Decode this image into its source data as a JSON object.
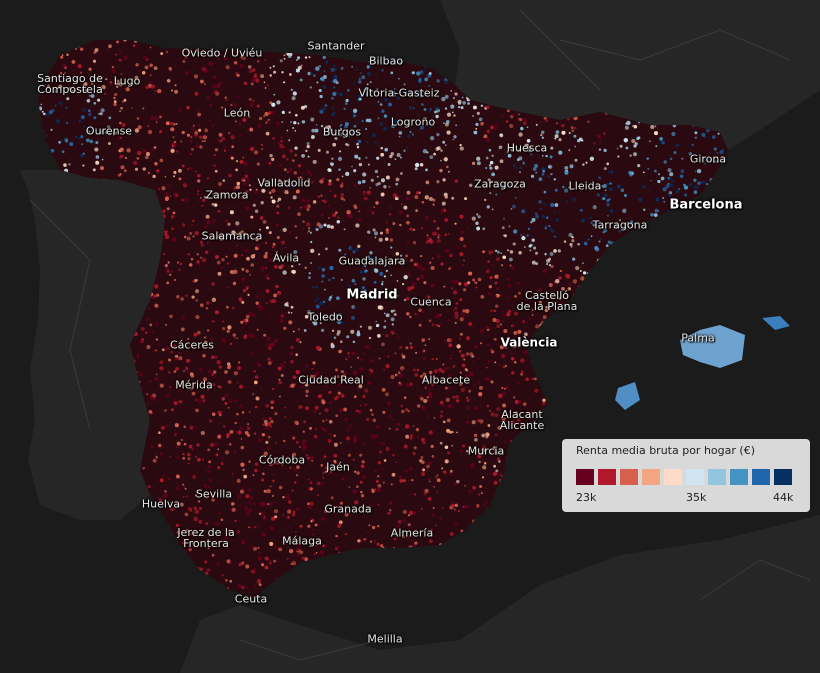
{
  "legend": {
    "title": "Renta media bruta por hogar (€)",
    "colors": [
      "#67001f",
      "#b2182b",
      "#d6604d",
      "#f4a582",
      "#fddbc7",
      "#d1e5f0",
      "#92c5de",
      "#4393c3",
      "#2166ac",
      "#053061"
    ],
    "ticks": [
      "23k",
      "35k",
      "44k"
    ]
  },
  "cities": [
    {
      "name": "Santander"
    },
    {
      "name": "Bilbao"
    },
    {
      "name": "Oviedo / Uviéu"
    },
    {
      "name": "Santiago de\nCompostela"
    },
    {
      "name": "Lugo"
    },
    {
      "name": "Vitoria-Gasteiz"
    },
    {
      "name": "León"
    },
    {
      "name": "Logroño"
    },
    {
      "name": "Ourense"
    },
    {
      "name": "Burgos"
    },
    {
      "name": "Huesca"
    },
    {
      "name": "Girona"
    },
    {
      "name": "Valladolid"
    },
    {
      "name": "Zaragoza"
    },
    {
      "name": "Lleida"
    },
    {
      "name": "Zamora"
    },
    {
      "name": "Barcelona"
    },
    {
      "name": "Tarragona"
    },
    {
      "name": "Salamanca"
    },
    {
      "name": "Ávila"
    },
    {
      "name": "Guadalajara"
    },
    {
      "name": "Madrid"
    },
    {
      "name": "Cuenca"
    },
    {
      "name": "Castelló\nde la Plana"
    },
    {
      "name": "Toledo"
    },
    {
      "name": "Palma"
    },
    {
      "name": "Cáceres"
    },
    {
      "name": "València"
    },
    {
      "name": "Mérida"
    },
    {
      "name": "Ciudad Real"
    },
    {
      "name": "Albacete"
    },
    {
      "name": "Alacant\nAlicante"
    },
    {
      "name": "Murcia"
    },
    {
      "name": "Córdoba"
    },
    {
      "name": "Jaén"
    },
    {
      "name": "Huelva"
    },
    {
      "name": "Sevilla"
    },
    {
      "name": "Granada"
    },
    {
      "name": "Almería"
    },
    {
      "name": "Jerez de la\nFrontera"
    },
    {
      "name": "Málaga"
    },
    {
      "name": "Ceuta"
    },
    {
      "name": "Melilla"
    }
  ]
}
